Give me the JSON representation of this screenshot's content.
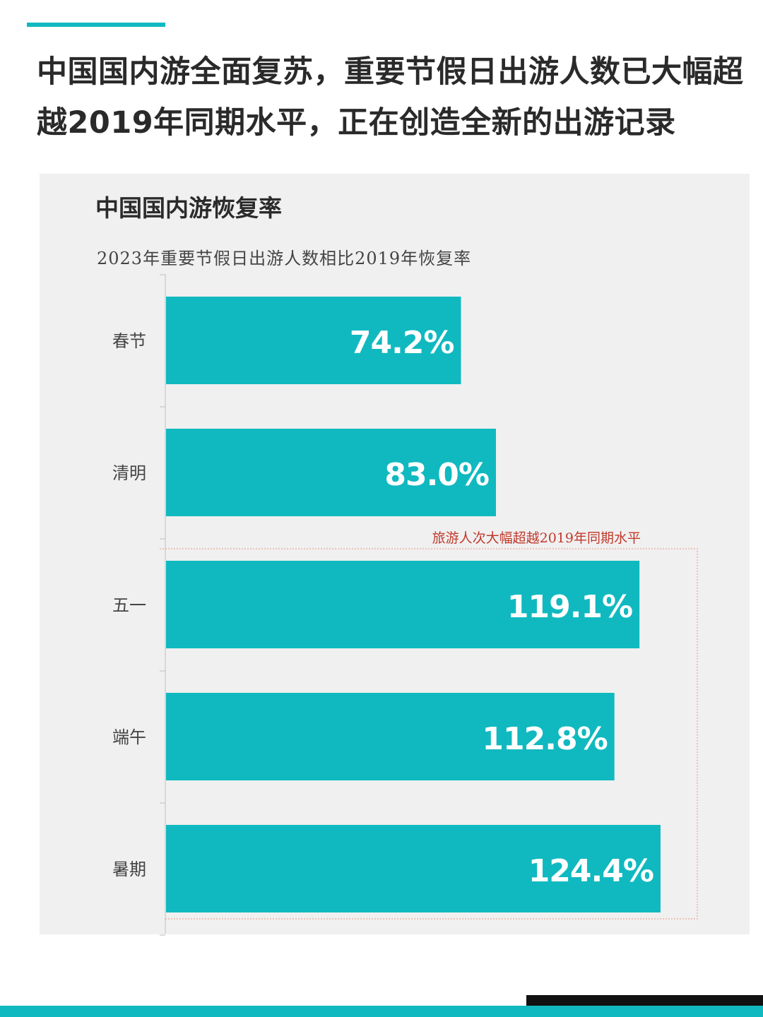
{
  "headline": {
    "line1": "中国国内游全面复苏，重要节假日出游人数已大幅超",
    "line2": "越2019年同期水平，正在创造全新的出游记录"
  },
  "colors": {
    "accent": "#10b9c0",
    "annotation": "#c0392b"
  },
  "chart_data": {
    "type": "bar",
    "orientation": "horizontal",
    "title": "中国国内游恢复率",
    "subtitle": "2023年重要节假日出游人数相比2019年恢复率",
    "categories": [
      "春节",
      "清明",
      "五一",
      "端午",
      "暑期"
    ],
    "values": [
      74.2,
      83.0,
      119.1,
      112.8,
      124.4
    ],
    "value_labels": [
      "74.2%",
      "83.0%",
      "119.1%",
      "112.8%",
      "124.4%"
    ],
    "unit": "%",
    "xlim": [
      0,
      130
    ],
    "grid": false,
    "legend": "none",
    "annotation": {
      "text": "旅游人次大幅超越2019年同期水平",
      "categories": [
        "五一",
        "端午",
        "暑期"
      ]
    }
  }
}
